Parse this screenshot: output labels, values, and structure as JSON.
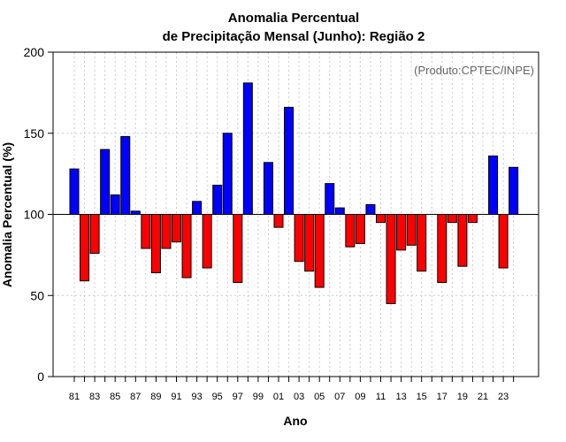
{
  "chart_data": {
    "type": "bar",
    "title_line1": "Anomalia Percentual",
    "title_line2": "de Precipitação Mensal (Junho): Região 2",
    "xlabel": "Ano",
    "ylabel": "Anomalia Percentual (%)",
    "source_note": "(Produto:CPTEC/INPE)",
    "baseline": 100,
    "ylim": [
      0,
      200
    ],
    "yticks": [
      0,
      50,
      100,
      150,
      200
    ],
    "xtick_labels": [
      "81",
      "83",
      "85",
      "87",
      "89",
      "91",
      "93",
      "95",
      "97",
      "99",
      "01",
      "03",
      "05",
      "07",
      "09",
      "11",
      "13",
      "15",
      "17",
      "19",
      "21",
      "23"
    ],
    "categories": [
      "1981",
      "1982",
      "1983",
      "1984",
      "1985",
      "1986",
      "1987",
      "1988",
      "1989",
      "1990",
      "1991",
      "1992",
      "1993",
      "1994",
      "1995",
      "1996",
      "1997",
      "1998",
      "1999",
      "2000",
      "2001",
      "2002",
      "2003",
      "2004",
      "2005",
      "2006",
      "2007",
      "2008",
      "2009",
      "2010",
      "2011",
      "2012",
      "2013",
      "2014",
      "2015",
      "2016",
      "2017",
      "2018",
      "2019",
      "2020",
      "2021",
      "2022",
      "2023",
      "2024"
    ],
    "values": [
      128,
      59,
      76,
      140,
      112,
      148,
      102,
      79,
      64,
      79,
      83,
      61,
      108,
      67,
      118,
      150,
      58,
      181,
      100,
      132,
      92,
      166,
      71,
      65,
      55,
      119,
      104,
      80,
      82,
      106,
      95,
      45,
      78,
      81,
      65,
      100,
      58,
      95,
      68,
      95,
      100,
      136,
      67,
      129
    ],
    "colors": {
      "above": "#0000ff",
      "below": "#ff0000",
      "outline": "#000000",
      "grid": "#cccccc"
    },
    "grid": true
  }
}
